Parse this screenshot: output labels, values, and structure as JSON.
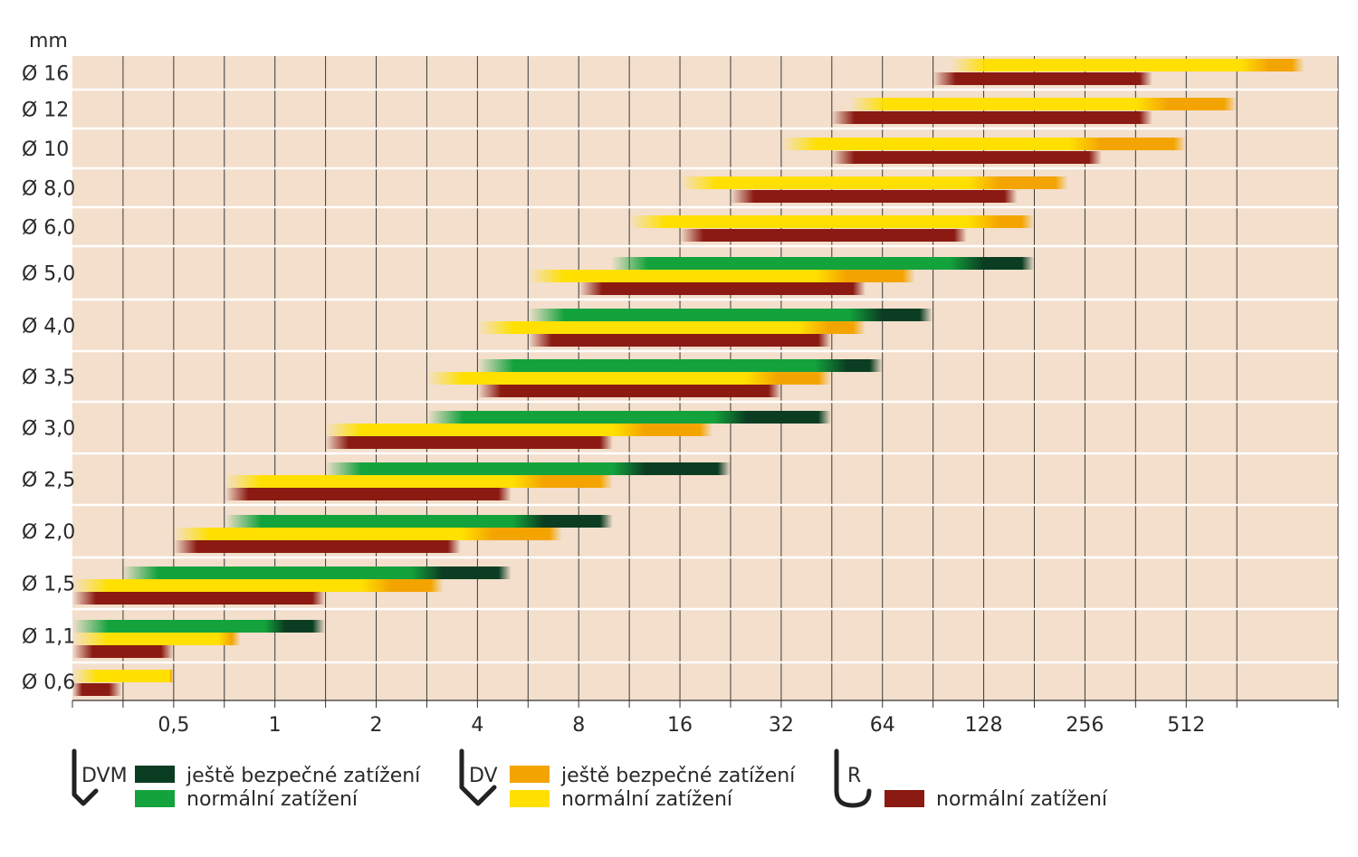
{
  "chart_data": {
    "type": "bar",
    "unit_label": "mm",
    "x_scale": "log2",
    "x_ticks": [
      {
        "value": 0.5,
        "label": "0,5"
      },
      {
        "value": 1,
        "label": "1"
      },
      {
        "value": 2,
        "label": "2"
      },
      {
        "value": 4,
        "label": "4"
      },
      {
        "value": 8,
        "label": "8"
      },
      {
        "value": 16,
        "label": "16"
      },
      {
        "value": 32,
        "label": "32"
      },
      {
        "value": 64,
        "label": "64"
      },
      {
        "value": 128,
        "label": "128"
      },
      {
        "value": 256,
        "label": "256"
      },
      {
        "value": 512,
        "label": "512"
      }
    ],
    "xlim": [
      0.25,
      1448
    ],
    "grid": true,
    "colors": {
      "background": "#f3dfcc",
      "dvm_safe": "#0b3d22",
      "dvm_normal": "#14a23c",
      "dv_safe": "#f4a400",
      "dv_normal": "#ffe000",
      "r_normal": "#8b1a12"
    },
    "rows": [
      {
        "label": "Ø 16",
        "R": [
          90,
          406
        ],
        "DV": [
          102,
          819,
          1150
        ]
      },
      {
        "label": "Ø 12",
        "R": [
          45,
          406
        ],
        "DV": [
          51,
          406,
          724
        ]
      },
      {
        "label": "Ø 10",
        "R": [
          45,
          287
        ],
        "DV": [
          32,
          256,
          512
        ]
      },
      {
        "label": "Ø 8,0",
        "R": [
          22.6,
          161
        ],
        "DV": [
          16,
          128,
          228
        ]
      },
      {
        "label": "Ø 6,0",
        "R": [
          16,
          114
        ],
        "DV": [
          11.3,
          128,
          181
        ]
      },
      {
        "label": "Ø 5,0",
        "R": [
          8,
          57
        ],
        "DV": [
          5.66,
          45,
          80
        ],
        "DVM": [
          10,
          114,
          181
        ]
      },
      {
        "label": "Ø 4,0",
        "R": [
          5.66,
          45
        ],
        "DV": [
          4,
          40,
          57
        ],
        "DVM": [
          5.66,
          57,
          90
        ]
      },
      {
        "label": "Ø 3,5",
        "R": [
          4,
          32
        ],
        "DV": [
          2.83,
          28,
          45
        ],
        "DVM": [
          4,
          45,
          64
        ]
      },
      {
        "label": "Ø 3,0",
        "R": [
          1.41,
          10.1
        ],
        "DV": [
          1.41,
          11.3,
          20
        ],
        "DVM": [
          2.83,
          22.6,
          45
        ]
      },
      {
        "label": "Ø 2,5",
        "R": [
          0.71,
          5.04
        ],
        "DV": [
          0.71,
          5.66,
          10.1
        ],
        "DVM": [
          1.41,
          11.3,
          22.6
        ]
      },
      {
        "label": "Ø 2,0",
        "R": [
          0.5,
          3.56
        ],
        "DV": [
          0.5,
          4,
          7.13
        ],
        "DVM": [
          0.71,
          5.66,
          10.1
        ]
      },
      {
        "label": "Ø 1,5",
        "R": [
          0.25,
          1.41
        ],
        "DV": [
          0.25,
          2,
          3.17
        ],
        "DVM": [
          0.35,
          2.83,
          5.04
        ]
      },
      {
        "label": "Ø 1,1",
        "R": [
          0.25,
          0.5
        ],
        "DV": [
          0.25,
          0.71,
          0.79
        ],
        "DVM": [
          0.25,
          1,
          1.41
        ]
      },
      {
        "label": "Ø 0,6",
        "R": [
          0.25,
          0.35
        ],
        "DV": [
          0.25,
          0.5,
          0.5
        ]
      }
    ]
  },
  "legend": {
    "dvm": {
      "code": "DVM",
      "safe_label": "ještě bezpečné zatížení",
      "normal_label": "normální zatížení"
    },
    "dv": {
      "code": "DV",
      "safe_label": "ještě bezpečné zatížení",
      "normal_label": "normální zatížení"
    },
    "r": {
      "code": "R",
      "normal_label": "normální zatížení"
    }
  }
}
